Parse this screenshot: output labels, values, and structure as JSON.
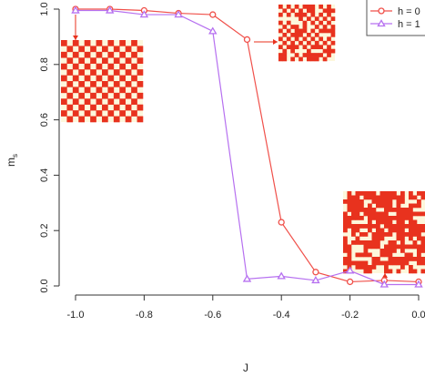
{
  "chart_data": {
    "type": "line",
    "xlabel": "J",
    "ylabel": "m",
    "ylabel_sub": "s",
    "xlim": [
      -1.02,
      0.0
    ],
    "ylim": [
      -0.02,
      1.02
    ],
    "x_ticks": [
      "-1.0",
      "-0.8",
      "-0.6",
      "-0.4",
      "-0.2",
      "0.0"
    ],
    "y_ticks": [
      "0.0",
      "0.2",
      "0.4",
      "0.6",
      "0.8",
      "1.0"
    ],
    "grid": false,
    "legend_position": "top-right",
    "series": [
      {
        "name": "h = 0",
        "color": "#f0504a",
        "marker": "circle",
        "x": [
          -1.0,
          -0.9,
          -0.8,
          -0.7,
          -0.6,
          -0.5,
          -0.4,
          -0.3,
          -0.2,
          -0.1,
          0.0
        ],
        "y": [
          1.0,
          1.0,
          0.995,
          0.985,
          0.98,
          0.89,
          0.23,
          0.05,
          0.015,
          0.02,
          0.015
        ]
      },
      {
        "name": "h = 1",
        "color": "#b670f0",
        "marker": "triangle",
        "x": [
          -1.0,
          -0.9,
          -0.8,
          -0.7,
          -0.6,
          -0.5,
          -0.4,
          -0.3,
          -0.2,
          -0.1,
          0.0
        ],
        "y": [
          0.995,
          0.995,
          0.98,
          0.98,
          0.92,
          0.025,
          0.035,
          0.02,
          0.055,
          0.005,
          0.005
        ]
      }
    ],
    "insets": [
      {
        "pattern": "checkerboard",
        "points_to_x": -1.0,
        "points_to_series": "h = 0"
      },
      {
        "pattern": "partially-ordered",
        "points_to_x": -0.5,
        "points_to_series": "h = 0"
      },
      {
        "pattern": "disordered",
        "points_to_x": -0.1,
        "points_to_series": "h = 0"
      }
    ],
    "colors": {
      "lattice_red": "#e8321e",
      "lattice_light": "#fdf7dc"
    }
  }
}
